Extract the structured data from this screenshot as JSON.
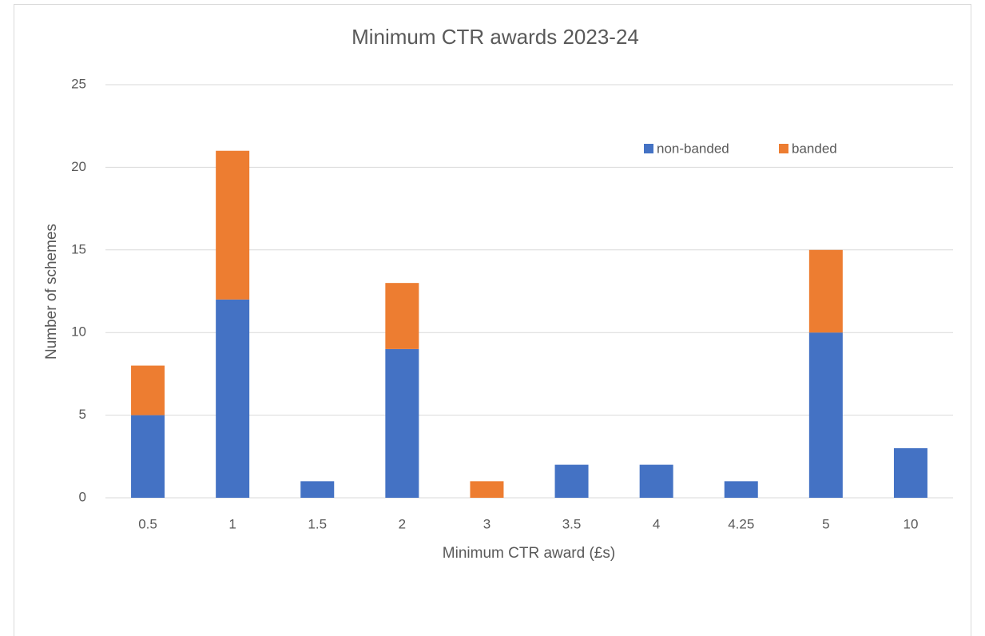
{
  "chart_data": {
    "type": "stacked_bar",
    "title": "Minimum CTR awards 2023-24",
    "x_label": "Minimum CTR award (£s)",
    "y_label": "Number of schemes",
    "categories": [
      "0.5",
      "1",
      "1.5",
      "2",
      "3",
      "3.5",
      "4",
      "4.25",
      "5",
      "10"
    ],
    "series": [
      {
        "name": "non-banded",
        "color": "#4472c4",
        "values": [
          5,
          12,
          1,
          9,
          0,
          2,
          2,
          1,
          10,
          3
        ]
      },
      {
        "name": "banded",
        "color": "#ed7d31",
        "values": [
          3,
          9,
          0,
          4,
          1,
          0,
          0,
          0,
          5,
          0
        ]
      }
    ],
    "ylim": [
      0,
      25
    ],
    "yticks": [
      0,
      5,
      10,
      15,
      20,
      25
    ],
    "grid": true,
    "legend": "top-right"
  }
}
